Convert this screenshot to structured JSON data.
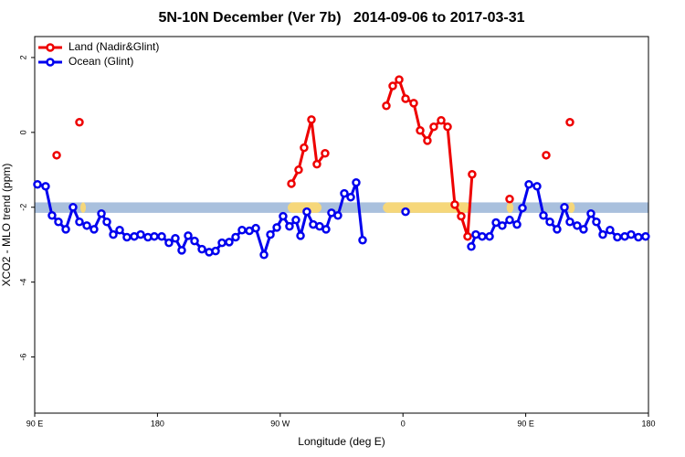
{
  "chart_data": {
    "type": "line",
    "title": "5N-10N December (Ver 7b)   2014-09-06 to 2017-03-31",
    "x_label": "Longitude (deg E)",
    "y_label": "XCO2 - MLO trend (ppm)",
    "xlim": [
      90,
      540
    ],
    "ylim": [
      -7.5,
      2.56
    ],
    "xticks": [
      {
        "value": 90,
        "label": "90 E"
      },
      {
        "value": 180,
        "label": "180"
      },
      {
        "value": 270,
        "label": "90 W"
      },
      {
        "value": 360,
        "label": "0"
      },
      {
        "value": 450,
        "label": "90 E"
      },
      {
        "value": 540,
        "label": "180"
      }
    ],
    "yticks": [
      2,
      0,
      -2,
      -4,
      -6
    ],
    "legend": "top-left",
    "reference_band": {
      "range": [
        -2.15,
        -1.87
      ],
      "color": "#a9c0dd"
    },
    "highlight_ranges": {
      "color": "#f6d77a",
      "ranges": [
        [
          123.5,
          127.5
        ],
        [
          275.5,
          300.3
        ],
        [
          345.3,
          409.4
        ],
        [
          436,
          441
        ],
        [
          481,
          486
        ]
      ]
    },
    "series": [
      {
        "name": "Land (Nadir&Glint)",
        "color": "#ee0000",
        "x": [
          106.1,
          null,
          122.8,
          null,
          278.2,
          283.5,
          287.5,
          292.9,
          296.9,
          302.9,
          null,
          347.8,
          352.5,
          357.2,
          361.9,
          367.9,
          372.6,
          377.9,
          382.6,
          388.0,
          392.7,
          398.0,
          402.7,
          407.4,
          410.7,
          null,
          438.2,
          null,
          465.0,
          null,
          482.4
        ],
        "values": [
          -0.61,
          null,
          0.27,
          null,
          -1.37,
          -1.0,
          -0.41,
          0.34,
          -0.85,
          -0.56,
          null,
          0.71,
          1.24,
          1.41,
          0.9,
          0.78,
          0.05,
          -0.22,
          0.15,
          0.32,
          0.15,
          -1.93,
          -2.24,
          -2.78,
          -1.12,
          null,
          -1.78,
          null,
          -0.61,
          null,
          0.27
        ]
      },
      {
        "name": "Ocean (Glint)",
        "color": "#0000ee",
        "x": [
          92.0,
          98.0,
          102.7,
          107.4,
          112.8,
          118.1,
          122.8,
          128.2,
          133.5,
          138.9,
          142.9,
          147.6,
          152.3,
          157.6,
          163.0,
          167.7,
          173.0,
          177.7,
          183.1,
          188.4,
          193.1,
          197.8,
          202.5,
          207.2,
          212.6,
          217.9,
          222.6,
          227.3,
          232.6,
          237.3,
          242.0,
          247.4,
          252.1,
          258.1,
          262.8,
          267.5,
          272.1,
          276.8,
          281.5,
          284.9,
          289.5,
          294.2,
          298.9,
          303.6,
          307.6,
          312.3,
          317.0,
          321.7,
          325.7,
          330.4,
          null,
          361.9,
          null,
          410.1,
          413.4,
          418.1,
          423.5,
          428.2,
          432.8,
          438.2,
          443.6,
          447.6,
          452.3,
          458.3,
          463.0,
          467.7,
          473.0,
          478.4,
          482.4,
          487.7,
          492.4,
          497.8,
          501.8,
          506.5,
          511.8,
          517.2,
          522.6,
          527.3,
          532.6,
          537.9
        ],
        "values": [
          -1.39,
          -1.44,
          -2.22,
          -2.39,
          -2.59,
          -2.0,
          -2.39,
          -2.49,
          -2.59,
          -2.17,
          -2.39,
          -2.73,
          -2.61,
          -2.8,
          -2.78,
          -2.73,
          -2.8,
          -2.78,
          -2.78,
          -2.95,
          -2.83,
          -3.15,
          -2.76,
          -2.9,
          -3.12,
          -3.2,
          -3.17,
          -2.95,
          -2.93,
          -2.8,
          -2.61,
          -2.63,
          -2.56,
          -3.27,
          -2.73,
          -2.54,
          -2.24,
          -2.51,
          -2.34,
          -2.76,
          -2.12,
          -2.46,
          -2.51,
          -2.59,
          -2.15,
          -2.22,
          -1.63,
          -1.73,
          -1.34,
          -2.88,
          null,
          -2.12,
          null,
          -3.05,
          -2.73,
          -2.78,
          -2.78,
          -2.41,
          -2.49,
          -2.34,
          -2.46,
          -2.02,
          -1.39,
          -1.44,
          -2.22,
          -2.39,
          -2.59,
          -2.0,
          -2.39,
          -2.49,
          -2.59,
          -2.17,
          -2.39,
          -2.73,
          -2.61,
          -2.8,
          -2.78,
          -2.73,
          -2.8,
          -2.78
        ]
      }
    ]
  }
}
